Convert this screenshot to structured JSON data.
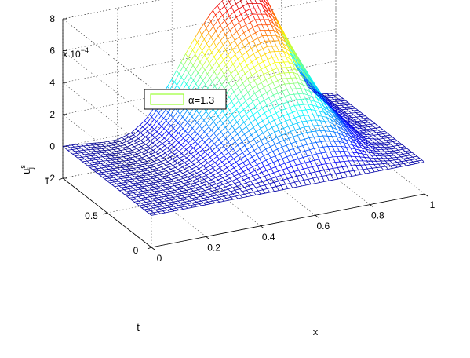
{
  "chart_data": {
    "type": "surface",
    "title": "",
    "xlabel": "x",
    "ylabel": "t",
    "zlabel": "u_j^s",
    "zlabel_base": "u",
    "zlabel_sup": "s",
    "zlabel_sub": "j",
    "z_exponent_label": "x 10",
    "z_exponent_power": "−4",
    "xlim": [
      0,
      1
    ],
    "ylim": [
      0,
      1
    ],
    "zlim": [
      -2,
      8
    ],
    "x_ticks": [
      0,
      0.2,
      0.4,
      0.6,
      0.8,
      1
    ],
    "x_tick_labels": [
      "0",
      "0.2",
      "0.4",
      "0.6",
      "0.8",
      "1"
    ],
    "t_ticks": [
      0,
      0.5,
      1
    ],
    "t_tick_labels": [
      "0",
      "0.5",
      "1"
    ],
    "z_ticks": [
      -2,
      0,
      2,
      4,
      6,
      8
    ],
    "z_tick_labels": [
      "−2",
      "0",
      "2",
      "4",
      "6",
      "8"
    ],
    "grid": true,
    "legend": {
      "position": "top-left",
      "entries": [
        {
          "label": "α=1.3",
          "color": "#99ff33"
        }
      ]
    },
    "colormap": "jet",
    "surface": {
      "description_of_function": "u(x,t) = peak * t * bump(x), bump centered near x=0.55",
      "x_samples": [
        0,
        0.05,
        0.1,
        0.15,
        0.2,
        0.25,
        0.3,
        0.35,
        0.4,
        0.45,
        0.5,
        0.55,
        0.6,
        0.65,
        0.7,
        0.75,
        0.8,
        0.85,
        0.9,
        0.95,
        1.0
      ],
      "profile_at_t1": [
        0.0,
        -0.05,
        -0.15,
        -0.25,
        -0.25,
        0.0,
        0.6,
        1.6,
        2.9,
        4.3,
        5.6,
        6.7,
        7.4,
        7.8,
        7.6,
        6.6,
        4.6,
        2.3,
        0.7,
        0.1,
        0.0
      ]
    }
  }
}
